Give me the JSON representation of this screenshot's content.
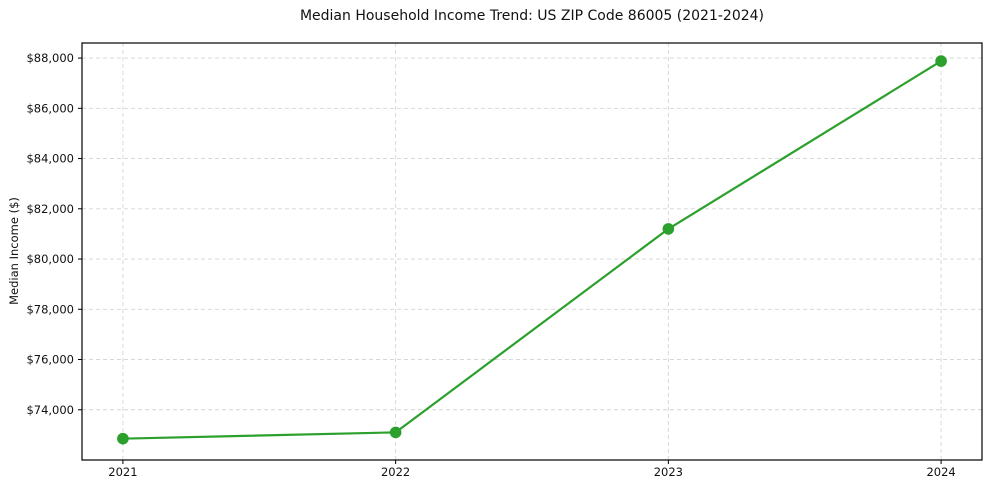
{
  "chart_data": {
    "type": "line",
    "title": "Median Household Income Trend: US ZIP Code 86005 (2021-2024)",
    "xlabel": "",
    "ylabel": "Median Income ($)",
    "categories": [
      "2021",
      "2022",
      "2023",
      "2024"
    ],
    "values": [
      72850,
      73100,
      81200,
      87880
    ],
    "ylim": [
      72000,
      88600
    ],
    "y_ticks": [
      {
        "value": 74000,
        "label": "$74,000"
      },
      {
        "value": 76000,
        "label": "$76,000"
      },
      {
        "value": 78000,
        "label": "$78,000"
      },
      {
        "value": 80000,
        "label": "$80,000"
      },
      {
        "value": 82000,
        "label": "$82,000"
      },
      {
        "value": 84000,
        "label": "$84,000"
      },
      {
        "value": 86000,
        "label": "$86,000"
      },
      {
        "value": 88000,
        "label": "$88,000"
      }
    ],
    "grid": "dashed",
    "legend": "none",
    "colors": {
      "line": "#2ca02c",
      "marker": "#2ca02c",
      "grid": "#d3d3d3",
      "axis": "#000000",
      "text": "#111111"
    }
  }
}
